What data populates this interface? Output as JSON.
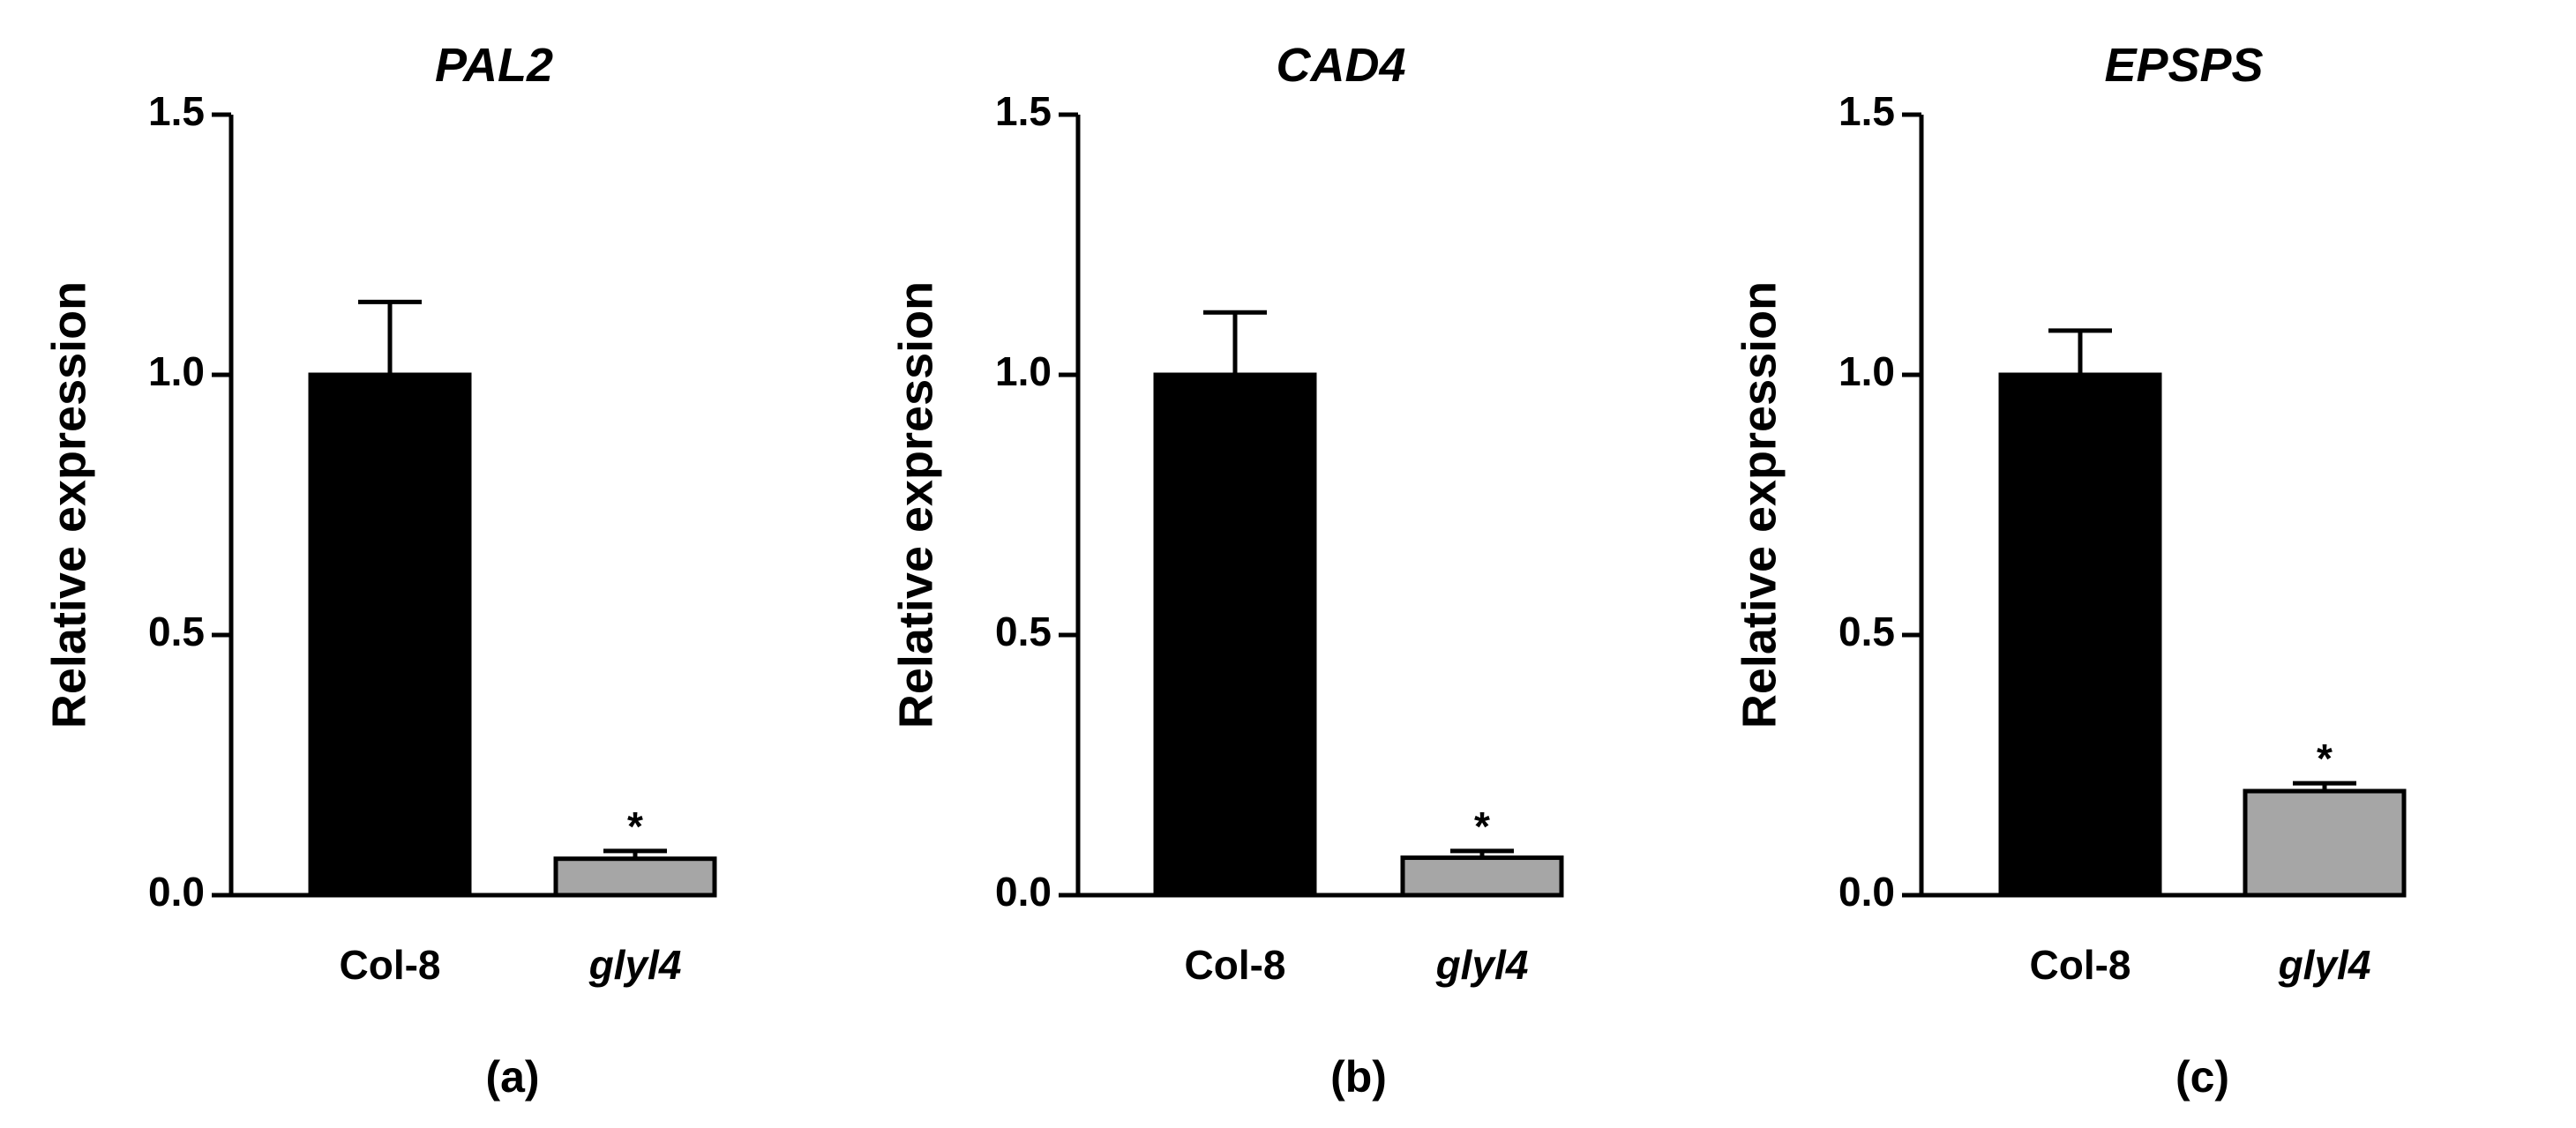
{
  "chart_data": [
    {
      "type": "bar",
      "panel_label": "(a)",
      "title": "PAL2",
      "ylabel": "Relative expression",
      "xlabel": "",
      "ylim": [
        0,
        1.5
      ],
      "yticks": [
        "0.0",
        "0.5",
        "1.0",
        "1.5"
      ],
      "categories": [
        "Col-8",
        "glyl4"
      ],
      "values": [
        1.0,
        0.07
      ],
      "errors": [
        0.14,
        0.015
      ],
      "significance": [
        "",
        "*"
      ],
      "colors": [
        "#000000",
        "#a6a6a6"
      ]
    },
    {
      "type": "bar",
      "panel_label": "(b)",
      "title": "CAD4",
      "ylabel": "Relative expression",
      "xlabel": "",
      "ylim": [
        0,
        1.5
      ],
      "yticks": [
        "0.0",
        "0.5",
        "1.0",
        "1.5"
      ],
      "categories": [
        "Col-8",
        "glyl4"
      ],
      "values": [
        1.0,
        0.072
      ],
      "errors": [
        0.12,
        0.013
      ],
      "significance": [
        "",
        "*"
      ],
      "colors": [
        "#000000",
        "#a6a6a6"
      ]
    },
    {
      "type": "bar",
      "panel_label": "(c)",
      "title": "EPSPS",
      "ylabel": "Relative expression",
      "xlabel": "",
      "ylim": [
        0,
        1.5
      ],
      "yticks": [
        "0.0",
        "0.5",
        "1.0",
        "1.5"
      ],
      "categories": [
        "Col-8",
        "glyl4"
      ],
      "values": [
        1.0,
        0.2
      ],
      "errors": [
        0.085,
        0.015
      ],
      "significance": [
        "",
        "*"
      ],
      "colors": [
        "#000000",
        "#a6a6a6"
      ]
    }
  ]
}
